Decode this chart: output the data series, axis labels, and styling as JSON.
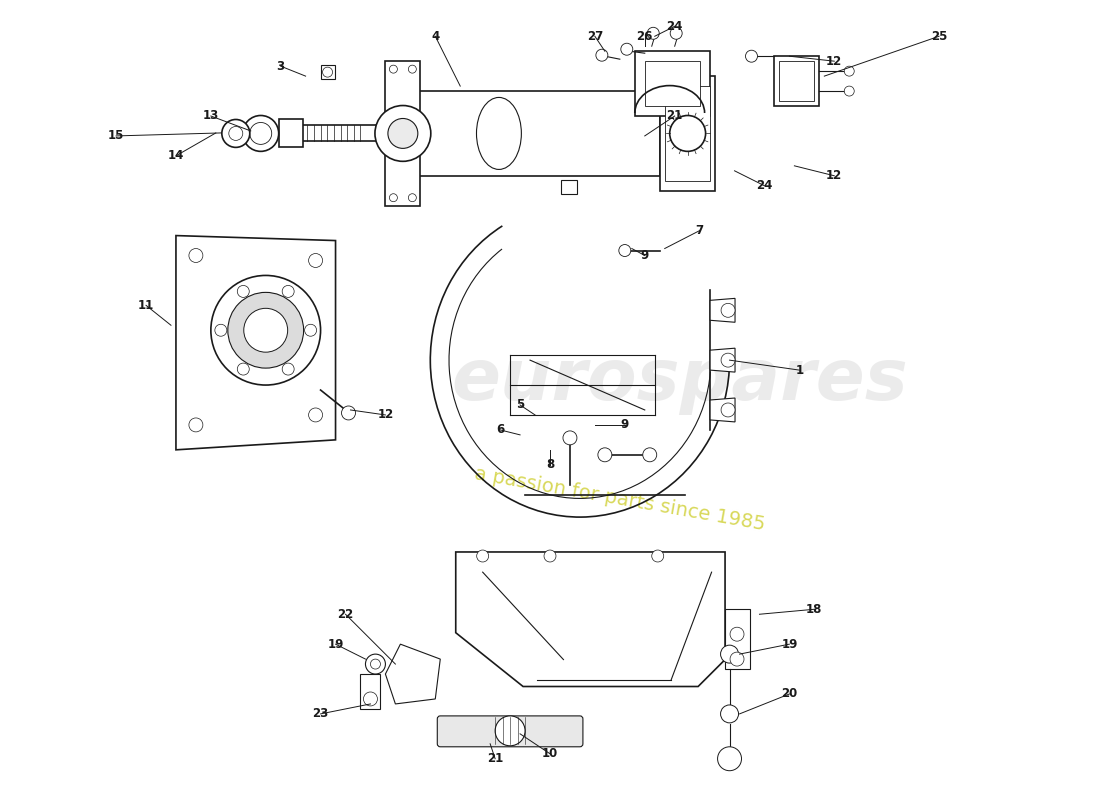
{
  "background_color": "#ffffff",
  "watermark_text1": "eurospares",
  "watermark_text2": "a passion for parts since 1985",
  "line_color": "#1a1a1a",
  "label_color": "#1a1a1a",
  "watermark_color1": "#c8c8c8",
  "watermark_color2": "#c8c814"
}
